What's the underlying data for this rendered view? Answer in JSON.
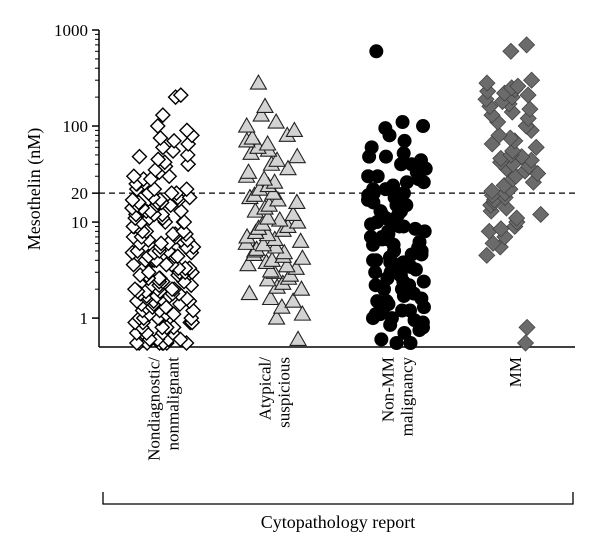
{
  "chart_data": {
    "type": "scatter",
    "y_scale": "log",
    "ylabel": "Mesothelin (nM)",
    "xlabel": "Cytopathology report",
    "ylim": [
      0.5,
      1000
    ],
    "yticks": [
      {
        "value": 1000,
        "label": "1000"
      },
      {
        "value": 100,
        "label": "100"
      },
      {
        "value": 20,
        "label": "20"
      },
      {
        "value": 10,
        "label": "10"
      },
      {
        "value": 1,
        "label": "1"
      }
    ],
    "threshold": {
      "value": 20,
      "style": "dashed"
    },
    "grid": false,
    "colors": {
      "nondiagnostic": "#ffffff",
      "atypical": "#d3d3d3",
      "non_mm": "#000000",
      "mm": "#6b6b6b"
    },
    "categories": [
      {
        "lines": [
          "Nondiagnostic/",
          "nonmalignant"
        ],
        "marker": "diamond-open",
        "values": [
          0.5,
          0.5,
          0.5,
          0.5,
          0.5,
          0.5,
          0.5,
          0.5,
          0.6,
          0.6,
          0.6,
          0.6,
          0.7,
          0.7,
          0.7,
          0.7,
          0.8,
          0.8,
          0.8,
          0.8,
          0.9,
          0.9,
          0.9,
          0.9,
          1.0,
          1.0,
          1.0,
          1.0,
          1.0,
          1.1,
          1.1,
          1.1,
          1.2,
          1.2,
          1.2,
          1.3,
          1.3,
          1.3,
          1.4,
          1.4,
          1.4,
          1.5,
          1.5,
          1.5,
          1.6,
          1.6,
          1.6,
          1.7,
          1.7,
          1.7,
          1.8,
          1.8,
          1.8,
          1.9,
          1.9,
          1.9,
          2.0,
          2.0,
          2.0,
          2.0,
          2.2,
          2.2,
          2.2,
          2.4,
          2.4,
          2.4,
          2.6,
          2.6,
          2.6,
          2.8,
          2.8,
          2.8,
          3.0,
          3.0,
          3.0,
          3.0,
          3.3,
          3.3,
          3.3,
          3.6,
          3.6,
          3.6,
          4.0,
          4.0,
          4.0,
          4.0,
          4.4,
          4.4,
          4.4,
          4.8,
          4.8,
          4.8,
          5.0,
          5.0,
          5.0,
          5.5,
          5.5,
          5.5,
          6.0,
          6.0,
          6.0,
          6.5,
          6.5,
          6.5,
          7.0,
          7.0,
          7.0,
          7.5,
          7.5,
          7.5,
          8.0,
          8.0,
          8.0,
          9.0,
          9.0,
          9.0,
          10,
          10,
          10,
          10,
          11,
          11,
          11,
          12,
          12,
          12,
          13,
          13,
          13,
          14,
          14,
          14,
          15,
          15,
          15,
          16,
          16,
          16,
          17,
          17,
          17,
          18,
          18,
          18,
          20,
          20,
          20,
          22,
          22,
          22,
          25,
          25,
          28,
          28,
          30,
          30,
          33,
          35,
          38,
          40,
          42,
          45,
          48,
          50,
          55,
          60,
          65,
          70,
          75,
          80,
          90,
          100,
          130,
          200,
          210
        ]
      },
      {
        "lines": [
          "Atypical/",
          "suspicious"
        ],
        "marker": "triangle",
        "values": [
          0.6,
          1.0,
          1.1,
          1.3,
          1.5,
          1.6,
          1.8,
          2.0,
          2.1,
          2.3,
          2.5,
          2.6,
          2.8,
          3.0,
          3.1,
          3.3,
          3.5,
          3.6,
          3.8,
          4.0,
          4.2,
          4.4,
          4.6,
          4.8,
          5.0,
          5.2,
          5.5,
          5.8,
          6.0,
          6.3,
          6.6,
          7.0,
          7.4,
          7.8,
          8.2,
          8.6,
          9.0,
          9.5,
          10,
          10.5,
          11,
          12,
          13,
          14,
          15,
          16,
          17,
          18,
          19,
          20,
          22,
          24,
          26,
          28,
          30,
          33,
          36,
          40,
          44,
          48,
          52,
          56,
          60,
          65,
          70,
          75,
          80,
          90,
          100,
          110,
          130,
          160,
          280
        ]
      },
      {
        "lines": [
          "Non-MM",
          "malignancy"
        ],
        "marker": "circle",
        "values": [
          0.45,
          0.55,
          0.6,
          0.7,
          0.75,
          0.8,
          0.85,
          0.9,
          0.95,
          1.0,
          1.0,
          1.1,
          1.1,
          1.2,
          1.2,
          1.3,
          1.3,
          1.4,
          1.5,
          1.5,
          1.6,
          1.7,
          1.8,
          1.9,
          2.0,
          2.0,
          2.2,
          2.2,
          2.4,
          2.4,
          2.6,
          2.6,
          2.8,
          2.8,
          3.0,
          3.0,
          3.2,
          3.4,
          3.4,
          3.6,
          3.8,
          3.8,
          4.0,
          4.0,
          4.3,
          4.6,
          4.6,
          5.0,
          5.0,
          5.4,
          5.8,
          5.8,
          6.2,
          6.6,
          6.6,
          7.0,
          7.0,
          7.5,
          8.0,
          8.0,
          8.5,
          9.0,
          9.0,
          9.5,
          10,
          10,
          11,
          11,
          12,
          12,
          13,
          13,
          14,
          15,
          15,
          16,
          17,
          17,
          18,
          19,
          20,
          20,
          22,
          22,
          24,
          26,
          26,
          28,
          30,
          30,
          33,
          36,
          36,
          40,
          40,
          44,
          48,
          48,
          52,
          60,
          70,
          80,
          95,
          100,
          110,
          600
        ]
      },
      {
        "lines": [
          "MM"
        ],
        "marker": "diamond",
        "values": [
          0.5,
          0.8,
          4.5,
          5.5,
          6,
          7,
          8,
          8.5,
          9,
          10,
          11,
          12,
          13,
          14,
          15,
          16,
          17,
          18,
          19,
          20,
          21,
          22,
          24,
          26,
          28,
          30,
          32,
          34,
          36,
          38,
          40,
          42,
          44,
          46,
          48,
          50,
          55,
          60,
          65,
          70,
          75,
          80,
          90,
          100,
          110,
          120,
          130,
          140,
          150,
          160,
          170,
          180,
          190,
          200,
          210,
          220,
          230,
          240,
          250,
          260,
          280,
          300,
          600,
          700
        ]
      }
    ]
  }
}
